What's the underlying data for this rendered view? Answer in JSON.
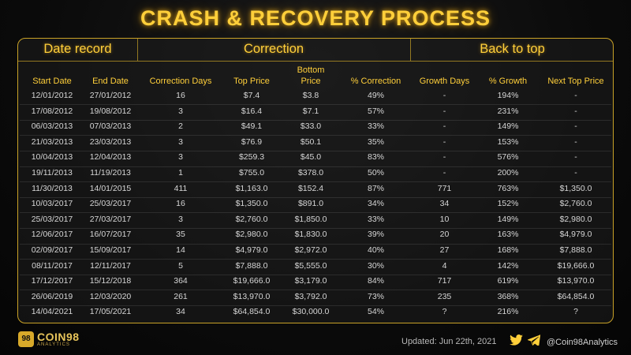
{
  "title": "CRASH & RECOVERY PROCESS",
  "groups": {
    "date_record": "Date record",
    "correction": "Correction",
    "back_to_top": "Back to top"
  },
  "columns": {
    "start_date": "Start Date",
    "end_date": "End Date",
    "correction_days": "Correction Days",
    "top_price": "Top Price",
    "bottom_price": "Bottom Price",
    "pct_correction": "% Correction",
    "growth_days": "Growth Days",
    "pct_growth": "% Growth",
    "next_top_price": "Next Top Price"
  },
  "rows": [
    [
      "12/01/2012",
      "27/01/2012",
      "16",
      "$7.4",
      "$3.8",
      "49%",
      "-",
      "194%",
      "-"
    ],
    [
      "17/08/2012",
      "19/08/2012",
      "3",
      "$16.4",
      "$7.1",
      "57%",
      "-",
      "231%",
      "-"
    ],
    [
      "06/03/2013",
      "07/03/2013",
      "2",
      "$49.1",
      "$33.0",
      "33%",
      "-",
      "149%",
      "-"
    ],
    [
      "21/03/2013",
      "23/03/2013",
      "3",
      "$76.9",
      "$50.1",
      "35%",
      "-",
      "153%",
      "-"
    ],
    [
      "10/04/2013",
      "12/04/2013",
      "3",
      "$259.3",
      "$45.0",
      "83%",
      "-",
      "576%",
      "-"
    ],
    [
      "19/11/2013",
      "11/19/2013",
      "1",
      "$755.0",
      "$378.0",
      "50%",
      "-",
      "200%",
      "-"
    ],
    [
      "11/30/2013",
      "14/01/2015",
      "411",
      "$1,163.0",
      "$152.4",
      "87%",
      "771",
      "763%",
      "$1,350.0"
    ],
    [
      "10/03/2017",
      "25/03/2017",
      "16",
      "$1,350.0",
      "$891.0",
      "34%",
      "34",
      "152%",
      "$2,760.0"
    ],
    [
      "25/03/2017",
      "27/03/2017",
      "3",
      "$2,760.0",
      "$1,850.0",
      "33%",
      "10",
      "149%",
      "$2,980.0"
    ],
    [
      "12/06/2017",
      "16/07/2017",
      "35",
      "$2,980.0",
      "$1,830.0",
      "39%",
      "20",
      "163%",
      "$4,979.0"
    ],
    [
      "02/09/2017",
      "15/09/2017",
      "14",
      "$4,979.0",
      "$2,972.0",
      "40%",
      "27",
      "168%",
      "$7,888.0"
    ],
    [
      "08/11/2017",
      "12/11/2017",
      "5",
      "$7,888.0",
      "$5,555.0",
      "30%",
      "4",
      "142%",
      "$19,666.0"
    ],
    [
      "17/12/2017",
      "15/12/2018",
      "364",
      "$19,666.0",
      "$3,179.0",
      "84%",
      "717",
      "619%",
      "$13,970.0"
    ],
    [
      "26/06/2019",
      "12/03/2020",
      "261",
      "$13,970.0",
      "$3,792.0",
      "73%",
      "235",
      "368%",
      "$64,854.0"
    ],
    [
      "14/04/2021",
      "17/05/2021",
      "34",
      "$64,854.0",
      "$30,000.0",
      "54%",
      "?",
      "216%",
      "?"
    ]
  ],
  "footer": {
    "logo_badge": "98",
    "logo_name": "COIN98",
    "logo_sub": "ANALYTICS",
    "updated": "Updated: Jun 22th, 2021",
    "handle": "@Coin98Analytics"
  },
  "colors": {
    "accent": "#ffcf3a",
    "border": "#c9a227",
    "background": "#0b0b0b"
  },
  "icons": [
    "twitter-icon",
    "telegram-icon"
  ]
}
